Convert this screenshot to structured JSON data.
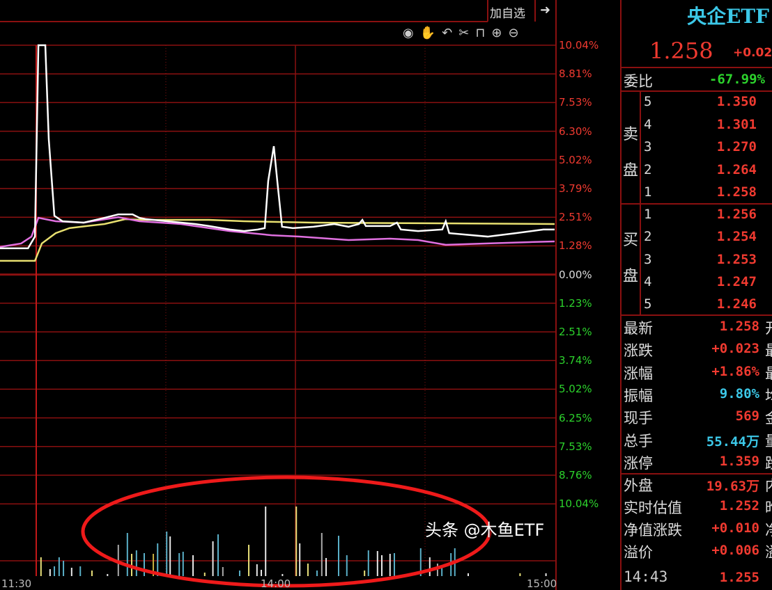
{
  "toolbar": {
    "add_watchlist": "加自选",
    "icons": [
      "exit-arrow-icon",
      "eye-icon",
      "hand-icon",
      "undo-icon",
      "scissors-icon",
      "lock-icon",
      "zoom-in-icon",
      "zoom-out-icon"
    ]
  },
  "colors": {
    "grid": "#8a1010",
    "up": "#f03a30",
    "down": "#2cd22c",
    "price_line": "#ffffff",
    "avg_line": "#e070e0",
    "ref_line": "#e8e070",
    "annotation": "#ee1a1a"
  },
  "chart_data": {
    "type": "line",
    "x_unit": "trading minutes from 11:30",
    "x_ticks": [
      {
        "t": 0,
        "label": "11:30"
      },
      {
        "t": 60,
        "label": "14:00"
      },
      {
        "t": 120,
        "label": "15:00"
      }
    ],
    "y_ticks_up": [
      "10.04%",
      "8.81%",
      "7.53%",
      "6.30%",
      "5.02%",
      "3.79%",
      "2.51%",
      "1.28%"
    ],
    "y_zero": "0.00%",
    "y_ticks_down": [
      "1.23%",
      "2.51%",
      "3.74%",
      "5.02%",
      "6.25%",
      "7.53%",
      "8.76%",
      "10.04%"
    ],
    "ylim": [
      -10.04,
      10.04
    ],
    "series": [
      {
        "color": "#ffffff",
        "points": [
          [
            -8.4,
            1.16
          ],
          [
            -1.9,
            1.16
          ],
          [
            -0.3,
            1.67
          ],
          [
            0.5,
            10.03
          ],
          [
            2.1,
            10.03
          ],
          [
            2.9,
            5.93
          ],
          [
            4.2,
            2.58
          ],
          [
            6.1,
            2.34
          ],
          [
            11,
            2.28
          ],
          [
            15.8,
            2.49
          ],
          [
            19,
            2.64
          ],
          [
            22.3,
            2.64
          ],
          [
            23.9,
            2.49
          ],
          [
            25.5,
            2.43
          ],
          [
            30.3,
            2.34
          ],
          [
            36.8,
            2.22
          ],
          [
            40,
            2.13
          ],
          [
            44.8,
            1.98
          ],
          [
            48.1,
            1.91
          ],
          [
            51.3,
            1.98
          ],
          [
            52.9,
            2.04
          ],
          [
            53.7,
            4.1
          ],
          [
            55,
            5.62
          ],
          [
            55.8,
            4.1
          ],
          [
            56.9,
            2.1
          ],
          [
            59.4,
            2.04
          ],
          [
            64.2,
            2.1
          ],
          [
            69,
            2.22
          ],
          [
            72.3,
            2.1
          ],
          [
            74.7,
            2.22
          ],
          [
            75.5,
            2.4
          ],
          [
            76.3,
            2.13
          ],
          [
            81.9,
            2.13
          ],
          [
            83.5,
            2.28
          ],
          [
            84.4,
            1.98
          ],
          [
            88.4,
            1.91
          ],
          [
            94,
            1.98
          ],
          [
            94.8,
            2.34
          ],
          [
            95.6,
            1.82
          ],
          [
            104.5,
            1.67
          ],
          [
            111,
            1.82
          ],
          [
            117.4,
            1.98
          ],
          [
            120,
            1.98
          ]
        ]
      },
      {
        "color": "#e070e0",
        "points": [
          [
            -8.4,
            1.22
          ],
          [
            -3.5,
            1.37
          ],
          [
            -1.1,
            1.67
          ],
          [
            0.5,
            2.49
          ],
          [
            4.5,
            2.34
          ],
          [
            11,
            2.28
          ],
          [
            19,
            2.52
          ],
          [
            23.9,
            2.34
          ],
          [
            33.5,
            2.22
          ],
          [
            44.8,
            1.91
          ],
          [
            54.5,
            1.73
          ],
          [
            60.9,
            1.67
          ],
          [
            72.3,
            1.52
          ],
          [
            81.9,
            1.58
          ],
          [
            88.4,
            1.52
          ],
          [
            94.8,
            1.31
          ],
          [
            104.5,
            1.37
          ],
          [
            114.2,
            1.43
          ],
          [
            120,
            1.46
          ]
        ]
      },
      {
        "color": "#e8e070",
        "points": [
          [
            -8.4,
            0.61
          ],
          [
            -0.3,
            0.61
          ],
          [
            1.3,
            1.37
          ],
          [
            4.5,
            1.82
          ],
          [
            7.7,
            2.04
          ],
          [
            15.8,
            2.22
          ],
          [
            20.6,
            2.43
          ],
          [
            25.5,
            2.4
          ],
          [
            40,
            2.4
          ],
          [
            48.1,
            2.34
          ],
          [
            64.2,
            2.28
          ],
          [
            120,
            2.22
          ]
        ]
      }
    ],
    "volume": [
      {
        "t": 1.1,
        "v": 27,
        "c": "#e8e07a"
      },
      {
        "t": 3.2,
        "v": 10,
        "c": "#e8e8e8"
      },
      {
        "t": 4.2,
        "v": 14,
        "c": "#5ab0c8"
      },
      {
        "t": 5.3,
        "v": 27,
        "c": "#5ab0c8"
      },
      {
        "t": 6.3,
        "v": 22,
        "c": "#5ab0c8"
      },
      {
        "t": 8.2,
        "v": 12,
        "c": "#e8e8e8"
      },
      {
        "t": 10.2,
        "v": 14,
        "c": "#5ab0c8"
      },
      {
        "t": 12.9,
        "v": 8,
        "c": "#e8e07a"
      },
      {
        "t": 16.5,
        "v": 3,
        "c": "#e8e8e8"
      },
      {
        "t": 19,
        "v": 45,
        "c": "#aaaaaa"
      },
      {
        "t": 21.1,
        "v": 62,
        "c": "#5ab0c8"
      },
      {
        "t": 22.1,
        "v": 32,
        "c": "#e8e07a"
      },
      {
        "t": 23.2,
        "v": 37,
        "c": "#5ab0c8"
      },
      {
        "t": 25,
        "v": 33,
        "c": "#5ab0c8"
      },
      {
        "t": 27.1,
        "v": 32,
        "c": "#c8b040"
      },
      {
        "t": 28.1,
        "v": 47,
        "c": "#5ab0c8"
      },
      {
        "t": 30.2,
        "v": 64,
        "c": "#5ab0c8"
      },
      {
        "t": 31,
        "v": 57,
        "c": "#e8e8e8"
      },
      {
        "t": 33.1,
        "v": 33,
        "c": "#5ab0c8"
      },
      {
        "t": 34.0,
        "v": 35,
        "c": "#5ab0c8"
      },
      {
        "t": 36.3,
        "v": 30,
        "c": "#e8e8e8"
      },
      {
        "t": 39,
        "v": 5,
        "c": "#e8e07a"
      },
      {
        "t": 40.9,
        "v": 50,
        "c": "#e8e8e8"
      },
      {
        "t": 42.1,
        "v": 60,
        "c": "#5ab0c8"
      },
      {
        "t": 43.2,
        "v": 13,
        "c": "#aaaaaa"
      },
      {
        "t": 47.1,
        "v": 8,
        "c": "#5ab0c8"
      },
      {
        "t": 49.2,
        "v": 45,
        "c": "#e8e07a"
      },
      {
        "t": 51.1,
        "v": 17,
        "c": "#e8e8e8"
      },
      {
        "t": 52.1,
        "v": 9,
        "c": "#e8e8e8"
      },
      {
        "t": 53.1,
        "v": 100,
        "c": "#e8e8e8"
      },
      {
        "t": 57,
        "v": 3,
        "c": "#e8e8e8"
      },
      {
        "t": 60.2,
        "v": 100,
        "c": "#e8e07a"
      },
      {
        "t": 61,
        "v": 47,
        "c": "#e8e8e8"
      },
      {
        "t": 62.9,
        "v": 18,
        "c": "#e8e07a"
      },
      {
        "t": 65,
        "v": 8,
        "c": "#5ab0c8"
      },
      {
        "t": 66.1,
        "v": 62,
        "c": "#aaaaaa"
      },
      {
        "t": 67.1,
        "v": 26,
        "c": "#e8e8e8"
      },
      {
        "t": 70,
        "v": 58,
        "c": "#5ab0c8"
      },
      {
        "t": 71.9,
        "v": 30,
        "c": "#5ab0c8"
      },
      {
        "t": 76,
        "v": 8,
        "c": "#e8e07a"
      },
      {
        "t": 76.9,
        "v": 37,
        "c": "#5ab0c8"
      },
      {
        "t": 79,
        "v": 36,
        "c": "#e8e8e8"
      },
      {
        "t": 80,
        "v": 30,
        "c": "#e8e8e8"
      },
      {
        "t": 81.9,
        "v": 32,
        "c": "#e8e8e8"
      },
      {
        "t": 82.9,
        "v": 33,
        "c": "#5ab0c8"
      },
      {
        "t": 89,
        "v": 40,
        "c": "#5ab0c8"
      },
      {
        "t": 91.1,
        "v": 27,
        "c": "#e8e8e8"
      },
      {
        "t": 92.9,
        "v": 18,
        "c": "#aaaaaa"
      },
      {
        "t": 93.9,
        "v": 14,
        "c": "#5ab0c8"
      },
      {
        "t": 96,
        "v": 33,
        "c": "#5ab0c8"
      },
      {
        "t": 96.9,
        "v": 40,
        "c": "#5ab0c8"
      },
      {
        "t": 100,
        "v": 4,
        "c": "#e8e8e8"
      },
      {
        "t": 112,
        "v": 4,
        "c": "#e8e07a"
      },
      {
        "t": 118,
        "v": 4,
        "c": "#e8e8e8"
      }
    ]
  },
  "quote": {
    "name": "央企ETF",
    "price": "1.258",
    "change_short": "+0.02",
    "wei_bi_label": "委比",
    "wei_bi": "-67.99%",
    "sell_label": [
      "卖",
      "盘"
    ],
    "buy_label": [
      "买",
      "盘"
    ],
    "sell": [
      {
        "level": "5",
        "price": "1.350"
      },
      {
        "level": "4",
        "price": "1.301"
      },
      {
        "level": "3",
        "price": "1.270"
      },
      {
        "level": "2",
        "price": "1.264"
      },
      {
        "level": "1",
        "price": "1.258"
      }
    ],
    "buy": [
      {
        "level": "1",
        "price": "1.256"
      },
      {
        "level": "2",
        "price": "1.254"
      },
      {
        "level": "3",
        "price": "1.253"
      },
      {
        "level": "4",
        "price": "1.247"
      },
      {
        "level": "5",
        "price": "1.246"
      }
    ],
    "stats": [
      {
        "label": "最新",
        "value": "1.258",
        "color": "red",
        "cut": "开"
      },
      {
        "label": "涨跌",
        "value": "+0.023",
        "color": "red",
        "cut": "最"
      },
      {
        "label": "涨幅",
        "value": "+1.86%",
        "color": "red",
        "cut": "最"
      },
      {
        "label": "振幅",
        "value": "9.80%",
        "color": "cyan",
        "cut": "均"
      },
      {
        "label": "现手",
        "value": "569",
        "color": "red",
        "cut": "金"
      },
      {
        "label": "总手",
        "value": "55.44万",
        "color": "cyan",
        "cut": "量"
      },
      {
        "label": "涨停",
        "value": "1.359",
        "color": "red",
        "cut": "跌"
      }
    ],
    "stats2": [
      {
        "label": "外盘",
        "value": "19.63万",
        "color": "red",
        "cut": "内"
      },
      {
        "label": "实时估值",
        "value": "1.252",
        "color": "red",
        "cut": "昨"
      },
      {
        "label": "净值涨跌",
        "value": "+0.010",
        "color": "red",
        "cut": "净"
      },
      {
        "label": "溢价",
        "value": "+0.006",
        "color": "red",
        "cut": "溢"
      }
    ],
    "last_trade": {
      "time": "14:43",
      "price": "1.255"
    }
  },
  "watermark": "头条 @木鱼ETF"
}
